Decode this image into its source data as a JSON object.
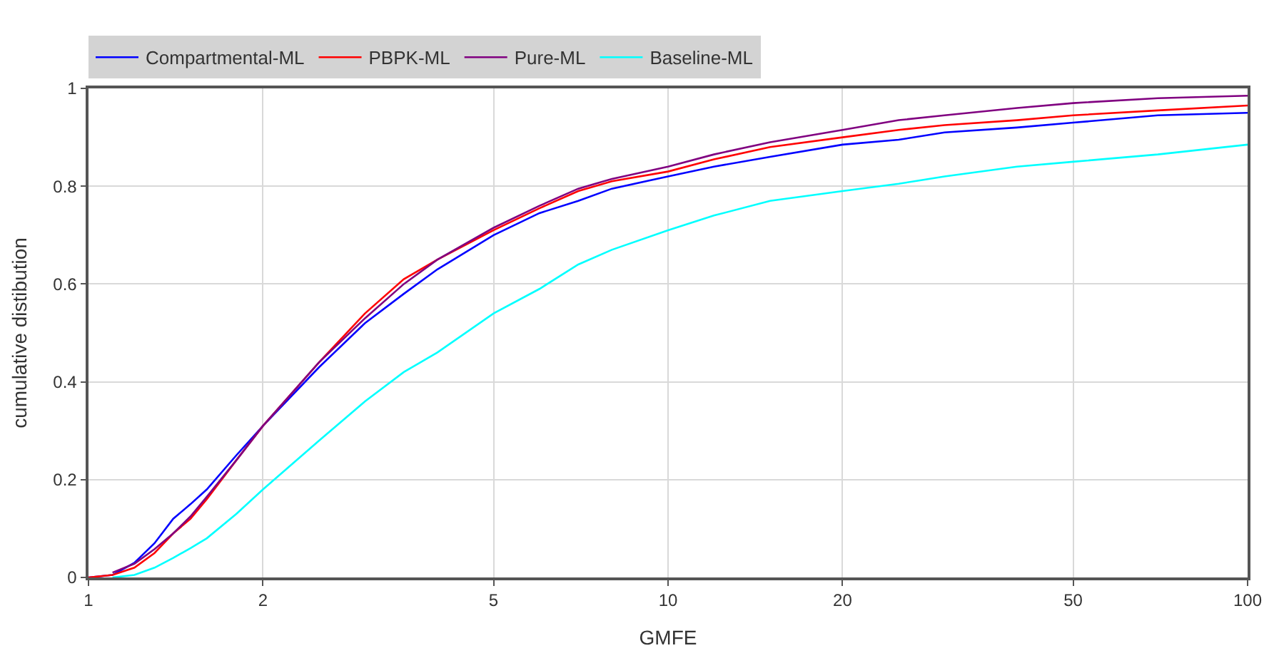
{
  "chart_data": {
    "type": "line",
    "xlabel": "GMFE",
    "ylabel": "cumulative distibution",
    "log": "x",
    "grid": true,
    "legend": "top left",
    "marker": "none",
    "line_style": "solid",
    "x": [
      1,
      1.1,
      1.2,
      1.3,
      1.4,
      1.5,
      1.6,
      1.8,
      2,
      2.5,
      3,
      3.5,
      4,
      5,
      6,
      7,
      8,
      10,
      12,
      15,
      20,
      25,
      30,
      40,
      50,
      70,
      100
    ],
    "xlim": [
      1,
      100
    ],
    "xticks": [
      1,
      2,
      5,
      10,
      20,
      50,
      100
    ],
    "ylim": [
      0,
      1
    ],
    "yticks": [
      0,
      0.2,
      0.4,
      0.6,
      0.8,
      1
    ],
    "series": [
      {
        "name": "Compartmental-ML",
        "color": "#0000ff",
        "values": [
          0,
          0.005,
          0.03,
          0.07,
          0.12,
          0.15,
          0.18,
          0.25,
          0.31,
          0.43,
          0.52,
          0.58,
          0.63,
          0.7,
          0.745,
          0.77,
          0.795,
          0.82,
          0.84,
          0.86,
          0.885,
          0.895,
          0.91,
          0.92,
          0.93,
          0.945,
          0.95
        ]
      },
      {
        "name": "PBPK-ML",
        "color": "#ff0000",
        "values": [
          0,
          0.005,
          0.02,
          0.05,
          0.09,
          0.12,
          0.16,
          0.24,
          0.31,
          0.44,
          0.54,
          0.61,
          0.65,
          0.71,
          0.755,
          0.79,
          0.81,
          0.83,
          0.855,
          0.88,
          0.9,
          0.915,
          0.925,
          0.935,
          0.945,
          0.955,
          0.965
        ]
      },
      {
        "name": "Pure-ML",
        "color": "#800080",
        "values": [
          null,
          0.01,
          0.028,
          0.058,
          0.09,
          0.125,
          0.165,
          0.24,
          0.31,
          0.44,
          0.53,
          0.6,
          0.65,
          0.715,
          0.76,
          0.795,
          0.815,
          0.84,
          0.865,
          0.89,
          0.915,
          0.935,
          0.945,
          0.96,
          0.97,
          0.98,
          0.985
        ]
      },
      {
        "name": "Baseline-ML",
        "color": "#00ffff",
        "values": [
          null,
          0,
          0.005,
          0.02,
          0.04,
          0.06,
          0.08,
          0.13,
          0.18,
          0.28,
          0.36,
          0.42,
          0.46,
          0.54,
          0.59,
          0.64,
          0.67,
          0.71,
          0.74,
          0.77,
          0.79,
          0.805,
          0.82,
          0.84,
          0.85,
          0.865,
          0.885
        ]
      }
    ]
  }
}
